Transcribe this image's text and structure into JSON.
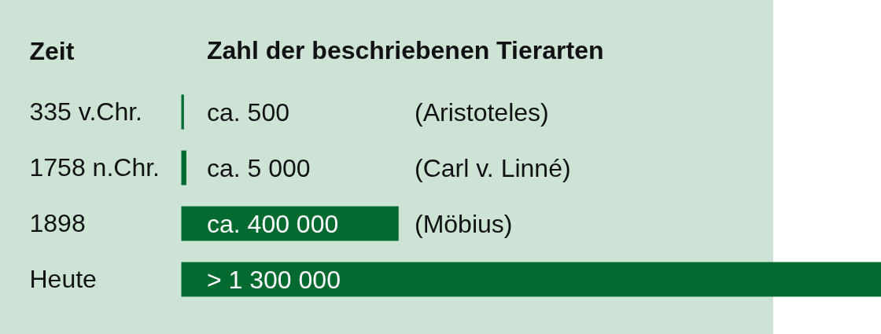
{
  "chart_data": {
    "type": "bar",
    "orientation": "horizontal",
    "title": "Zahl der beschriebenen Tierarten",
    "ylabel": "Zeit",
    "categories": [
      "335 v.Chr.",
      "1758 n.Chr.",
      "1898",
      "Heute"
    ],
    "values": [
      500,
      5000,
      400000,
      1300000
    ],
    "value_labels": [
      "ca. 500",
      "ca. 5 000",
      "ca. 400 000",
      "> 1 300 000"
    ],
    "color": "#006a30",
    "tick_labels": "y",
    "annotations": [
      "(Aristoteles)",
      "(Carl v. Linné)",
      "(Möbius)"
    ]
  }
}
